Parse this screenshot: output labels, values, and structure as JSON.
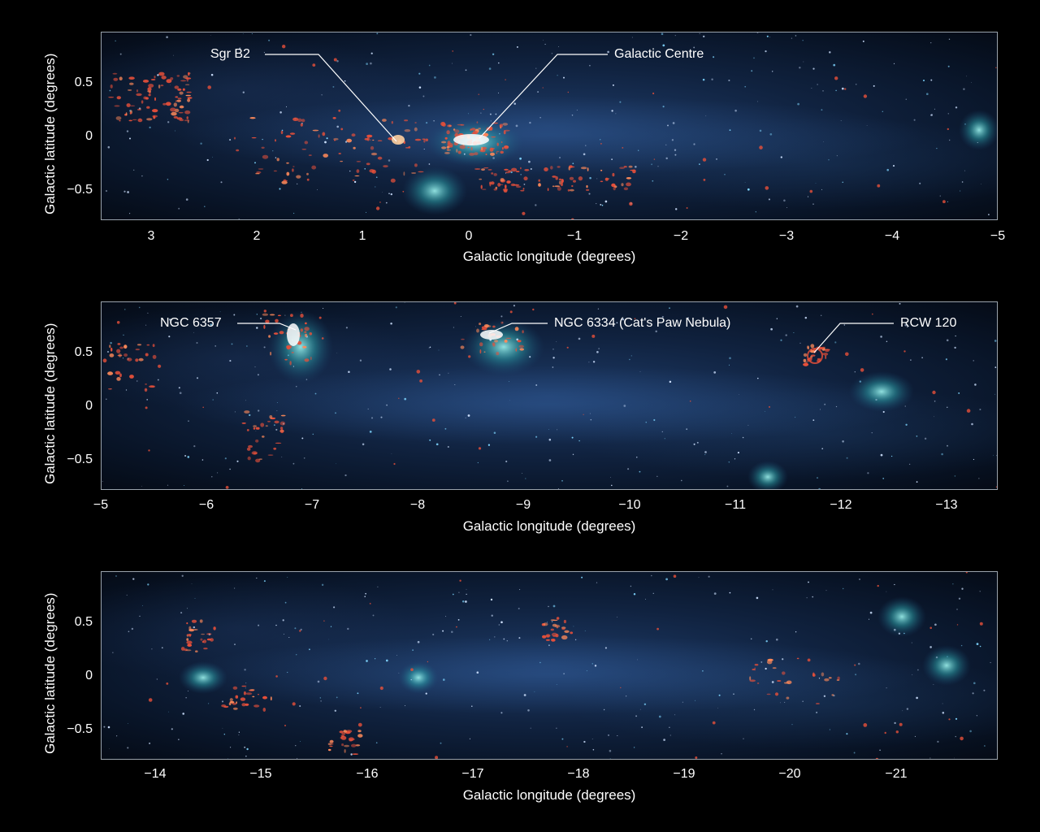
{
  "panels": [
    {
      "id": "panel1",
      "x_ticks": [
        "3",
        "2",
        "1",
        "0",
        "−1",
        "−2",
        "−3",
        "−4",
        "−5"
      ],
      "y_ticks": [
        "0.5",
        "0",
        "−0.5"
      ],
      "xlabel": "Galactic longitude (degrees)",
      "ylabel": "Galactic latitude (degrees)",
      "annotations": [
        "Sgr B2",
        "Galactic Centre"
      ]
    },
    {
      "id": "panel2",
      "x_ticks": [
        "−5",
        "−6",
        "−7",
        "−8",
        "−9",
        "−10",
        "−11",
        "−12",
        "−13"
      ],
      "y_ticks": [
        "0.5",
        "0",
        "−0.5"
      ],
      "xlabel": "Galactic longitude (degrees)",
      "ylabel": "Galactic latitude (degrees)",
      "annotations": [
        "NGC 6357",
        "NGC 6334 (Cat's Paw Nebula)",
        "RCW 120"
      ]
    },
    {
      "id": "panel3",
      "x_ticks": [
        "−14",
        "−15",
        "−16",
        "−17",
        "−18",
        "−19",
        "−20",
        "−21"
      ],
      "y_ticks": [
        "0.5",
        "0",
        "−0.5"
      ],
      "xlabel": "Galactic longitude (degrees)",
      "ylabel": "Galactic latitude (degrees)",
      "annotations": []
    }
  ],
  "colors": {
    "background": "#000000",
    "sky_blue": "#1d3a66",
    "dust_red": "#e8503a",
    "gas_cyan": "#3fc4c8",
    "frame": "#9aa3ad"
  }
}
